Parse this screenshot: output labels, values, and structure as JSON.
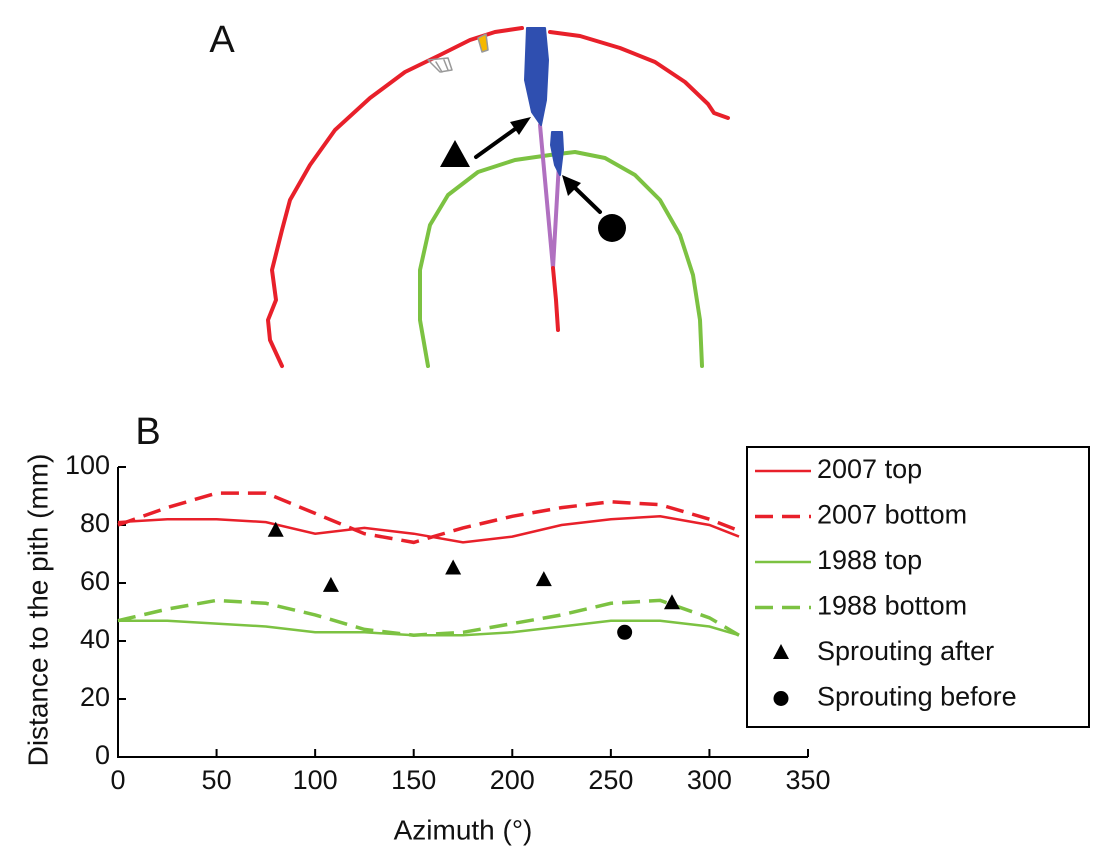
{
  "panel_labels": [
    "A",
    "B"
  ],
  "chart_data": {
    "type": "line",
    "xlabel": "Azimuth (°)",
    "ylabel": "Distance to the pith (mm)",
    "xlim": [
      0,
      350
    ],
    "xticks": [
      0,
      50,
      100,
      150,
      200,
      250,
      300,
      350
    ],
    "ylim": [
      0,
      100
    ],
    "yticks": [
      0,
      20,
      40,
      60,
      80,
      100
    ],
    "legend": "upper right",
    "series": [
      {
        "name": "2007 top",
        "color": "#e8202a",
        "style": "solid",
        "x": [
          0,
          25,
          50,
          75,
          100,
          125,
          150,
          175,
          200,
          225,
          250,
          275,
          300,
          315
        ],
        "values": [
          81,
          82,
          82,
          81,
          77,
          79,
          77,
          74,
          76,
          80,
          82,
          83,
          80,
          76
        ]
      },
      {
        "name": "2007 bottom",
        "color": "#e8202a",
        "style": "dashed",
        "x": [
          0,
          25,
          50,
          75,
          100,
          125,
          150,
          175,
          200,
          225,
          250,
          275,
          300,
          315
        ],
        "values": [
          80,
          86,
          91,
          91,
          84,
          77,
          74,
          79,
          83,
          86,
          88,
          87,
          82,
          78
        ]
      },
      {
        "name": "1988 top",
        "color": "#7cc242",
        "style": "solid",
        "x": [
          0,
          25,
          50,
          75,
          100,
          125,
          150,
          175,
          200,
          225,
          250,
          275,
          300,
          315
        ],
        "values": [
          47,
          47,
          46,
          45,
          43,
          43,
          42,
          42,
          43,
          45,
          47,
          47,
          45,
          42
        ]
      },
      {
        "name": "1988 bottom",
        "color": "#7cc242",
        "style": "dashed",
        "x": [
          0,
          25,
          50,
          75,
          100,
          125,
          150,
          175,
          200,
          225,
          250,
          275,
          300,
          315
        ],
        "values": [
          47,
          51,
          54,
          53,
          49,
          44,
          42,
          43,
          46,
          49,
          53,
          54,
          48,
          42
        ]
      },
      {
        "name": "Sprouting after",
        "color": "#000000",
        "style": "marker",
        "marker": "triangle",
        "x": [
          80,
          108,
          170,
          216,
          281
        ],
        "values": [
          78,
          59,
          65,
          61,
          53
        ]
      },
      {
        "name": "Sprouting before",
        "color": "#000000",
        "style": "marker",
        "marker": "circle",
        "x": [
          257
        ],
        "values": [
          43
        ]
      }
    ]
  }
}
